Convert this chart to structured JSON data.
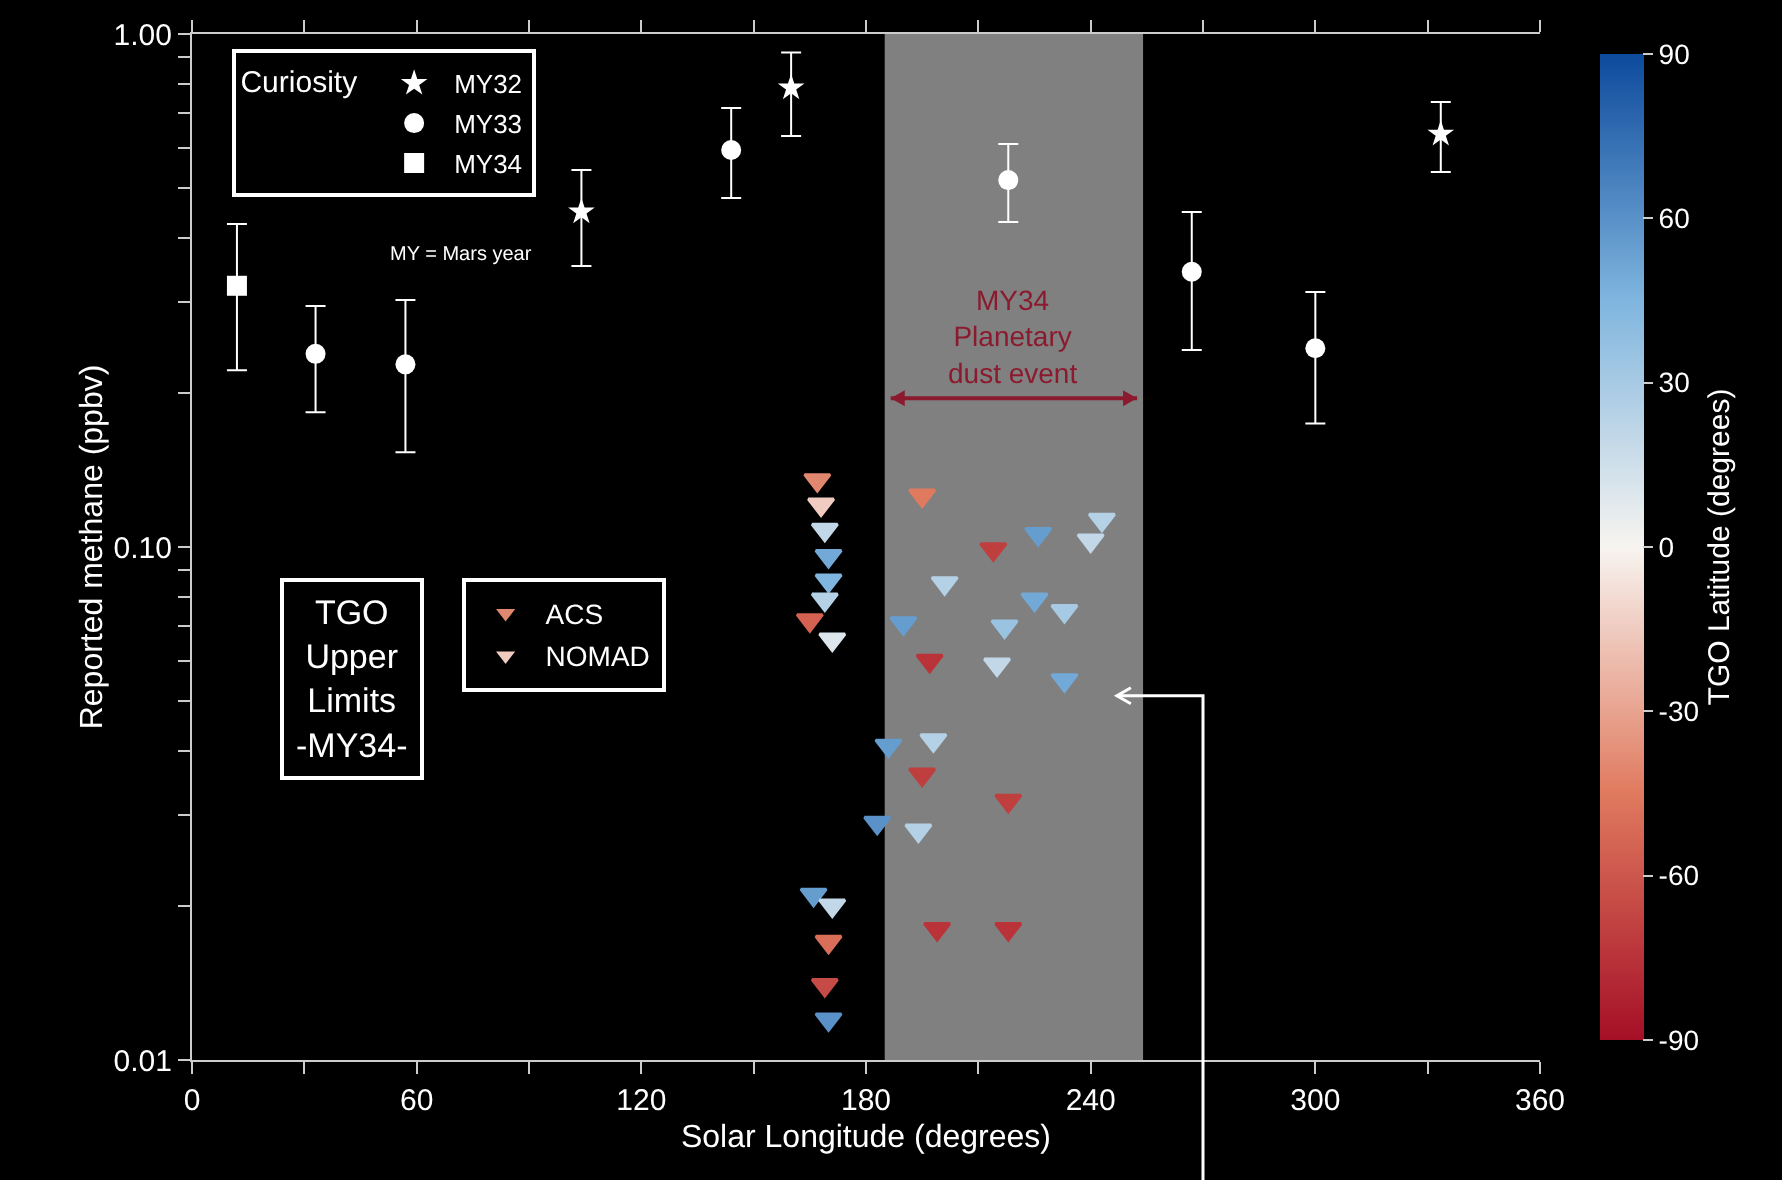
{
  "chart_data": {
    "type": "scatter",
    "xlabel": "Solar Longitude (degrees)",
    "ylabel": "Reported methane (ppbv)",
    "clabel": "TGO Latitude (degrees)",
    "legend_title": "Curiosity",
    "legend": "top left",
    "log": "y",
    "grid": false,
    "xlim": [
      0,
      360
    ],
    "xticks": [
      0,
      {
        "value": 30,
        "label": null
      },
      60,
      {
        "value": 90,
        "label": null
      },
      120,
      {
        "value": 150,
        "label": null
      },
      180,
      {
        "value": 210,
        "label": null
      },
      240,
      {
        "value": 270,
        "label": null
      },
      300,
      {
        "value": 330,
        "label": null
      },
      360
    ],
    "ylim": [
      0.01,
      1
    ],
    "yticks": [
      {
        "value": 0.01,
        "label": "0.01"
      },
      {
        "value": 0.02,
        "label": null
      },
      {
        "value": 0.03,
        "label": null
      },
      {
        "value": 0.04,
        "label": null
      },
      {
        "value": 0.05,
        "label": null
      },
      {
        "value": 0.06,
        "label": null
      },
      {
        "value": 0.07,
        "label": null
      },
      {
        "value": 0.08,
        "label": null
      },
      {
        "value": 0.09,
        "label": null
      },
      {
        "value": 0.1,
        "label": "0.10"
      },
      {
        "value": 0.2,
        "label": null
      },
      {
        "value": 0.3,
        "label": null
      },
      {
        "value": 0.4,
        "label": null
      },
      {
        "value": 0.5,
        "label": null
      },
      {
        "value": 0.6,
        "label": null
      },
      {
        "value": 0.7,
        "label": null
      },
      {
        "value": 0.8,
        "label": null
      },
      {
        "value": 0.9,
        "label": null
      },
      {
        "value": 1,
        "label": "1.00"
      }
    ],
    "clim": [
      -90,
      90
    ],
    "cticks": [
      -90,
      -60,
      -30,
      0,
      30,
      60,
      90
    ],
    "bands": [
      {
        "axis": "x",
        "from": 185,
        "to": 254,
        "label": "MY34\nPlanetary\ndust event",
        "color": "#808080"
      }
    ],
    "annotations": [
      "MY = Mars year",
      "TGO\nUpper\nLimits\n-MY34-"
    ],
    "series": [
      {
        "name": "MY32",
        "color": "#ffffff",
        "marker": "star",
        "x": [
          104,
          160,
          333.5
        ],
        "values": [
          0.45,
          0.785,
          0.638
        ],
        "errors": [
          [
            0.353,
            0.543
          ],
          [
            0.633,
            0.92
          ],
          [
            0.538,
            0.737
          ]
        ]
      },
      {
        "name": "MY33",
        "color": "#ffffff",
        "marker": "circle",
        "x": [
          33,
          57,
          144,
          218,
          267,
          300
        ],
        "values": [
          0.238,
          0.227,
          0.594,
          0.519,
          0.344,
          0.244
        ],
        "errors": [
          [
            0.183,
            0.295
          ],
          [
            0.153,
            0.303
          ],
          [
            0.479,
            0.717
          ],
          [
            0.43,
            0.61
          ],
          [
            0.242,
            0.45
          ],
          [
            0.174,
            0.314
          ]
        ]
      },
      {
        "name": "MY34",
        "color": "#ffffff",
        "marker": "square",
        "x": [
          12
        ],
        "values": [
          0.323
        ],
        "errors": [
          [
            0.221,
            0.426
          ]
        ]
      },
      {
        "name": "ACS",
        "marker": "triangle",
        "x": [
          167,
          169,
          170,
          165,
          166,
          170,
          170,
          186,
          195,
          218,
          199,
          218,
          195,
          190,
          197,
          214,
          226,
          233,
          225
        ],
        "values": [
          0.135,
          0.108,
          0.086,
          0.072,
          0.021,
          0.017,
          0.012,
          0.041,
          0.036,
          0.032,
          0.018,
          0.018,
          0.126,
          0.071,
          0.06,
          0.099,
          0.106,
          0.055,
          0.079
        ],
        "cvalues": [
          -40,
          20,
          45,
          -55,
          55,
          -50,
          60,
          55,
          -70,
          -70,
          -75,
          -75,
          -45,
          55,
          -75,
          -70,
          55,
          50,
          50
        ],
        "colors": [
          "#df886f",
          "#c2d8e8",
          "#7fb5de",
          "#d36252",
          "#669dcf",
          "#d96e59",
          "#5991c8",
          "#669dcf",
          "#bf3f3f",
          "#bf3f3f",
          "#b93339",
          "#b93339",
          "#e07a5f",
          "#669dcf",
          "#b93339",
          "#bf3f3f",
          "#669dcf",
          "#72a9d7",
          "#72a9d7"
        ]
      },
      {
        "name": "NOMAD",
        "marker": "triangle",
        "x": [
          168,
          170,
          169,
          171,
          171,
          169,
          183,
          198,
          194,
          201,
          243,
          240,
          217,
          215,
          233
        ],
        "values": [
          0.121,
          0.096,
          0.079,
          0.066,
          0.02,
          0.014,
          0.029,
          0.042,
          0.028,
          0.085,
          0.113,
          0.103,
          0.07,
          0.059,
          0.075
        ],
        "cvalues": [
          -15,
          50,
          25,
          10,
          20,
          -65,
          60,
          25,
          25,
          25,
          25,
          20,
          35,
          20,
          30
        ],
        "colors": [
          "#f0cbc0",
          "#72a9d7",
          "#b4d1e6",
          "#dce6ec",
          "#c2d8e8",
          "#c64a46",
          "#5991c8",
          "#b4d1e6",
          "#b4d1e6",
          "#b4d1e6",
          "#b4d1e6",
          "#c2d8e8",
          "#9ac3e2",
          "#c2d8e8",
          "#a7cae4"
        ]
      }
    ]
  }
}
